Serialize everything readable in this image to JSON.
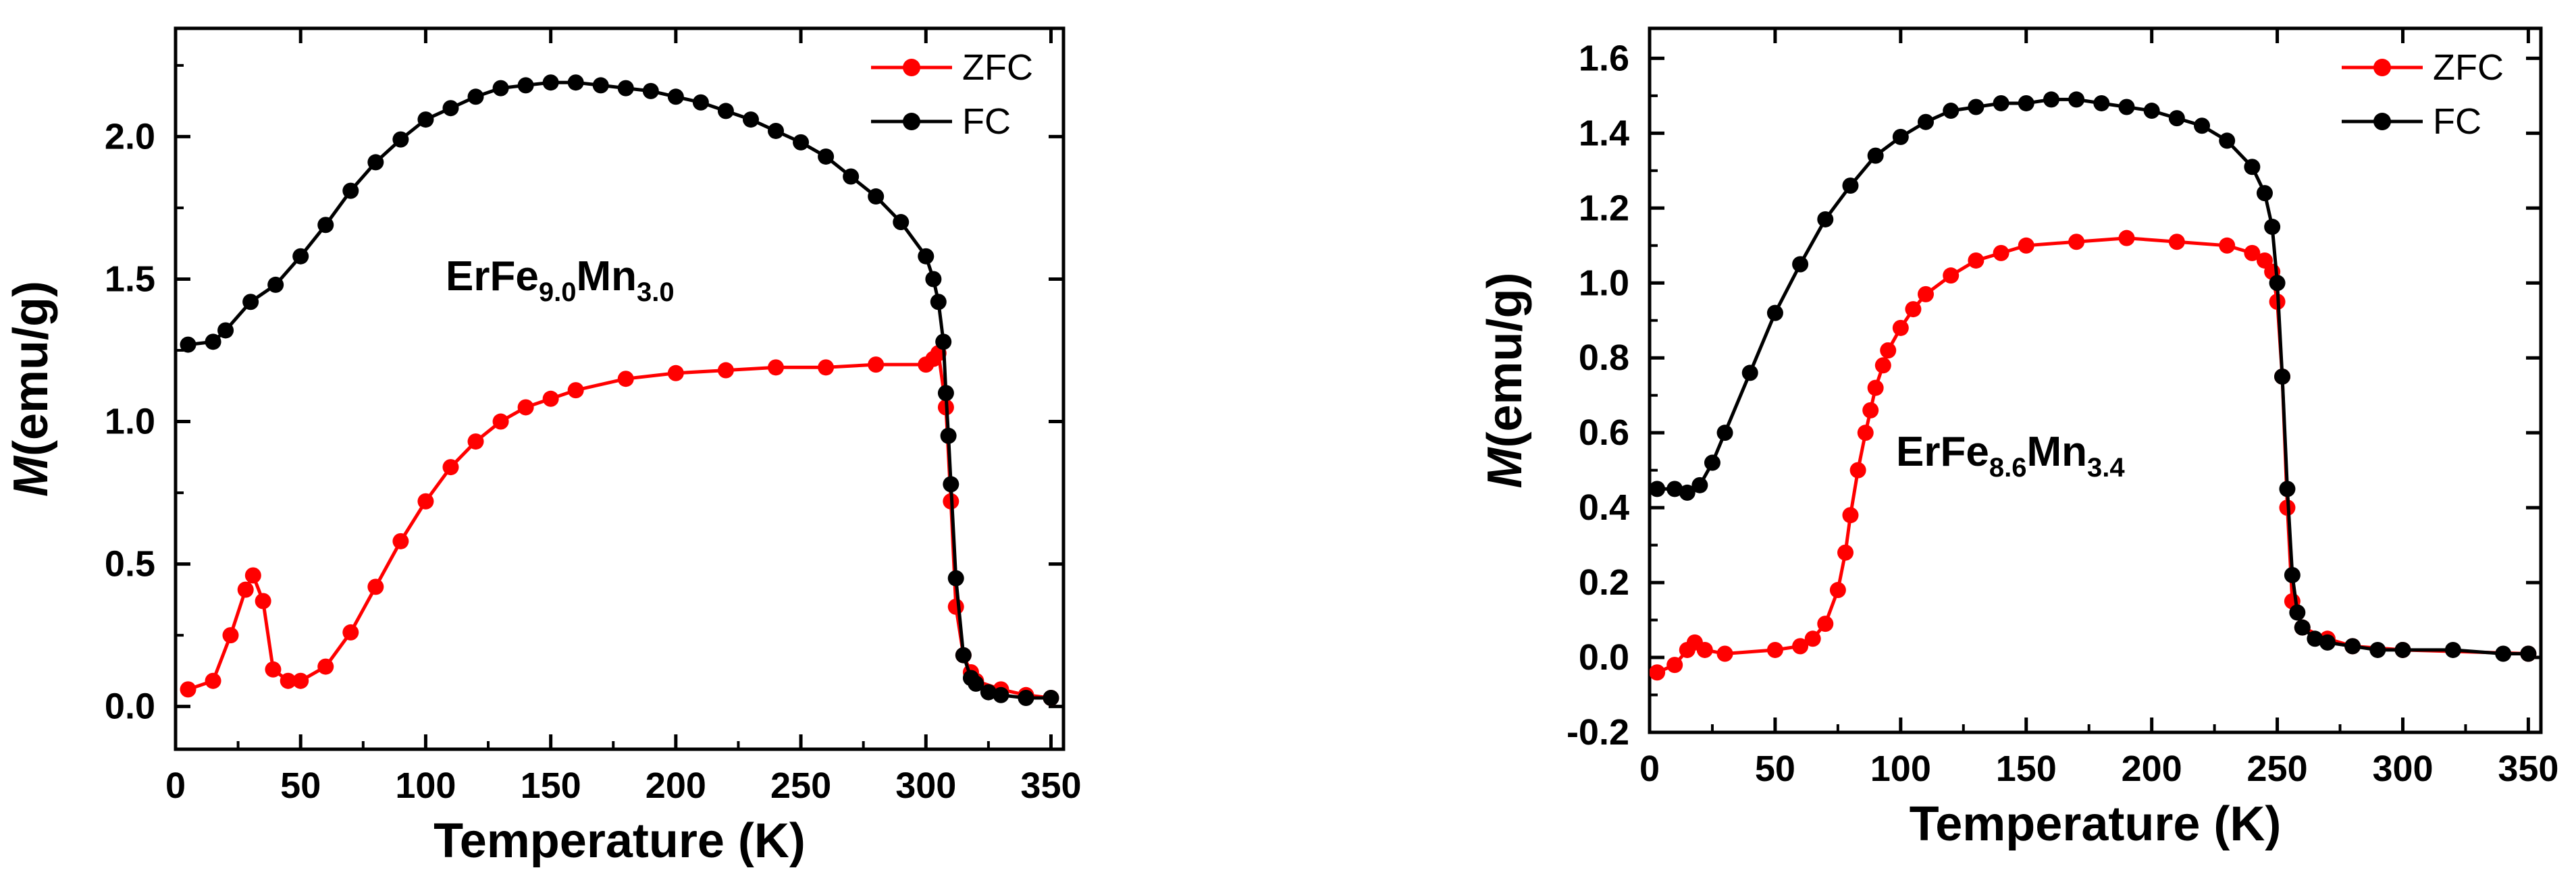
{
  "chart_data": [
    {
      "type": "line",
      "compound": {
        "base": "ErFe",
        "sub1": "9.0",
        "mid": "Mn",
        "sub2": "3.0"
      },
      "xlabel": "Temperature (K)",
      "ylabel": {
        "italic": "M",
        "rest": "(emu/g)"
      },
      "xlim": [
        0,
        355
      ],
      "ylim": [
        -0.15,
        2.38
      ],
      "xticks": [
        0,
        50,
        100,
        150,
        200,
        250,
        300,
        350
      ],
      "yticks": [
        0.0,
        0.5,
        1.0,
        1.5,
        2.0
      ],
      "xtick_labels": [
        "0",
        "50",
        "100",
        "150",
        "200",
        "250",
        "300",
        "350"
      ],
      "ytick_labels": [
        "0.0",
        "0.5",
        "1.0",
        "1.5",
        "2.0"
      ],
      "legend": {
        "position": "top-right",
        "entries": [
          "ZFC",
          "FC"
        ]
      },
      "series": [
        {
          "name": "ZFC",
          "color": "#ff0000",
          "x": [
            5,
            15,
            22,
            28,
            31,
            35,
            39,
            45,
            50,
            60,
            70,
            80,
            90,
            100,
            110,
            120,
            130,
            140,
            150,
            160,
            180,
            200,
            220,
            240,
            260,
            280,
            300,
            303,
            305,
            308,
            310,
            312,
            315,
            318,
            320,
            330,
            340,
            350
          ],
          "y": [
            0.06,
            0.09,
            0.25,
            0.41,
            0.46,
            0.37,
            0.13,
            0.09,
            0.09,
            0.14,
            0.26,
            0.42,
            0.58,
            0.72,
            0.84,
            0.93,
            1.0,
            1.05,
            1.08,
            1.11,
            1.15,
            1.17,
            1.18,
            1.19,
            1.19,
            1.2,
            1.2,
            1.22,
            1.24,
            1.05,
            0.72,
            0.35,
            0.18,
            0.12,
            0.09,
            0.06,
            0.04,
            0.03
          ]
        },
        {
          "name": "FC",
          "color": "#000000",
          "x": [
            5,
            15,
            20,
            30,
            40,
            50,
            60,
            70,
            80,
            90,
            100,
            110,
            120,
            130,
            140,
            150,
            160,
            170,
            180,
            190,
            200,
            210,
            220,
            230,
            240,
            250,
            260,
            270,
            280,
            290,
            300,
            303,
            305,
            307,
            308,
            309,
            310,
            312,
            315,
            318,
            320,
            325,
            330,
            340,
            350
          ],
          "y": [
            1.27,
            1.28,
            1.32,
            1.42,
            1.48,
            1.58,
            1.69,
            1.81,
            1.91,
            1.99,
            2.06,
            2.1,
            2.14,
            2.17,
            2.18,
            2.19,
            2.19,
            2.18,
            2.17,
            2.16,
            2.14,
            2.12,
            2.09,
            2.06,
            2.02,
            1.98,
            1.93,
            1.86,
            1.79,
            1.7,
            1.58,
            1.5,
            1.42,
            1.28,
            1.1,
            0.95,
            0.78,
            0.45,
            0.18,
            0.1,
            0.08,
            0.05,
            0.04,
            0.03,
            0.03
          ]
        }
      ]
    },
    {
      "type": "line",
      "compound": {
        "base": "ErFe",
        "sub1": "8.6",
        "mid": "Mn",
        "sub2": "3.4"
      },
      "xlabel": "Temperature (K)",
      "ylabel": {
        "italic": "M",
        "rest": "(emu/g)"
      },
      "xlim": [
        0,
        355
      ],
      "ylim": [
        -0.2,
        1.68
      ],
      "xticks": [
        0,
        50,
        100,
        150,
        200,
        250,
        300,
        350
      ],
      "yticks": [
        -0.2,
        0.0,
        0.2,
        0.4,
        0.6,
        0.8,
        1.0,
        1.2,
        1.4,
        1.6
      ],
      "xtick_labels": [
        "0",
        "50",
        "100",
        "150",
        "200",
        "250",
        "300",
        "350"
      ],
      "ytick_labels": [
        "-0.2",
        "0.0",
        "0.2",
        "0.4",
        "0.6",
        "0.8",
        "1.0",
        "1.2",
        "1.4",
        "1.6"
      ],
      "legend": {
        "position": "top-right",
        "entries": [
          "ZFC",
          "FC"
        ]
      },
      "series": [
        {
          "name": "ZFC",
          "color": "#ff0000",
          "x": [
            3,
            10,
            15,
            18,
            22,
            30,
            50,
            60,
            65,
            70,
            75,
            78,
            80,
            83,
            86,
            88,
            90,
            93,
            95,
            100,
            105,
            110,
            120,
            130,
            140,
            150,
            170,
            190,
            210,
            230,
            240,
            245,
            248,
            250,
            252,
            254,
            256,
            260,
            270,
            280,
            300,
            350
          ],
          "y": [
            -0.04,
            -0.02,
            0.02,
            0.04,
            0.02,
            0.01,
            0.02,
            0.03,
            0.05,
            0.09,
            0.18,
            0.28,
            0.38,
            0.5,
            0.6,
            0.66,
            0.72,
            0.78,
            0.82,
            0.88,
            0.93,
            0.97,
            1.02,
            1.06,
            1.08,
            1.1,
            1.11,
            1.12,
            1.11,
            1.1,
            1.08,
            1.06,
            1.03,
            0.95,
            0.75,
            0.4,
            0.15,
            0.08,
            0.05,
            0.03,
            0.02,
            0.01
          ]
        },
        {
          "name": "FC",
          "color": "#000000",
          "x": [
            3,
            10,
            15,
            20,
            25,
            30,
            40,
            50,
            60,
            70,
            80,
            90,
            100,
            110,
            120,
            130,
            140,
            150,
            160,
            170,
            180,
            190,
            200,
            210,
            220,
            230,
            240,
            245,
            248,
            250,
            252,
            254,
            256,
            258,
            260,
            265,
            270,
            280,
            290,
            300,
            320,
            340,
            350
          ],
          "y": [
            0.45,
            0.45,
            0.44,
            0.46,
            0.52,
            0.6,
            0.76,
            0.92,
            1.05,
            1.17,
            1.26,
            1.34,
            1.39,
            1.43,
            1.46,
            1.47,
            1.48,
            1.48,
            1.49,
            1.49,
            1.48,
            1.47,
            1.46,
            1.44,
            1.42,
            1.38,
            1.31,
            1.24,
            1.15,
            1.0,
            0.75,
            0.45,
            0.22,
            0.12,
            0.08,
            0.05,
            0.04,
            0.03,
            0.02,
            0.02,
            0.02,
            0.01,
            0.01
          ]
        }
      ]
    }
  ]
}
